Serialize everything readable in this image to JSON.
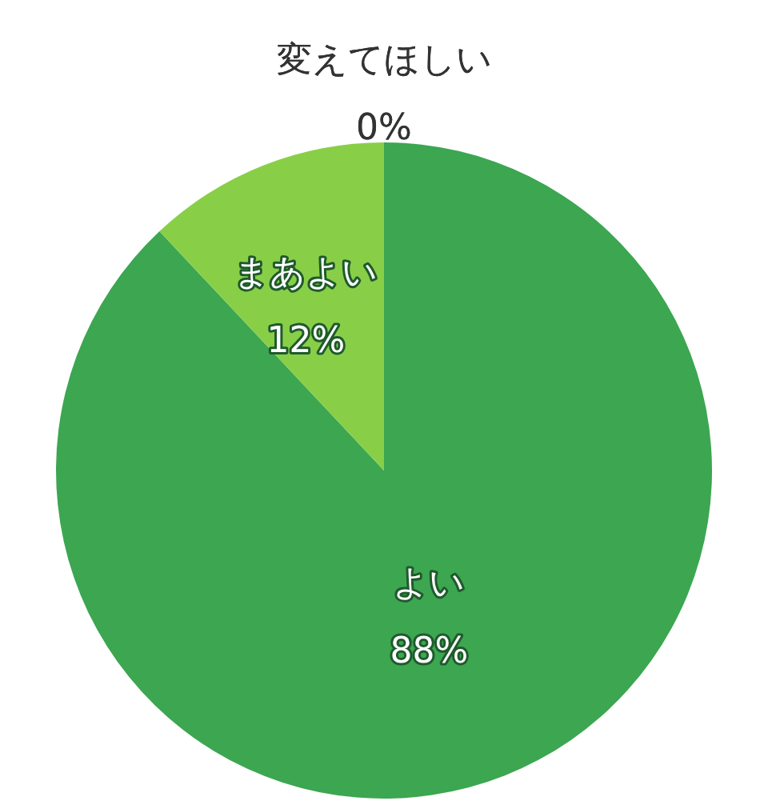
{
  "chart_data": {
    "type": "pie",
    "categories": [
      "よい",
      "まあよい",
      "変えてほしい"
    ],
    "values": [
      88,
      12,
      0
    ],
    "value_labels": [
      "88%",
      "12%",
      "0%"
    ],
    "colors": [
      "#3ca651",
      "#88cf47",
      "#c8c8c8"
    ]
  }
}
